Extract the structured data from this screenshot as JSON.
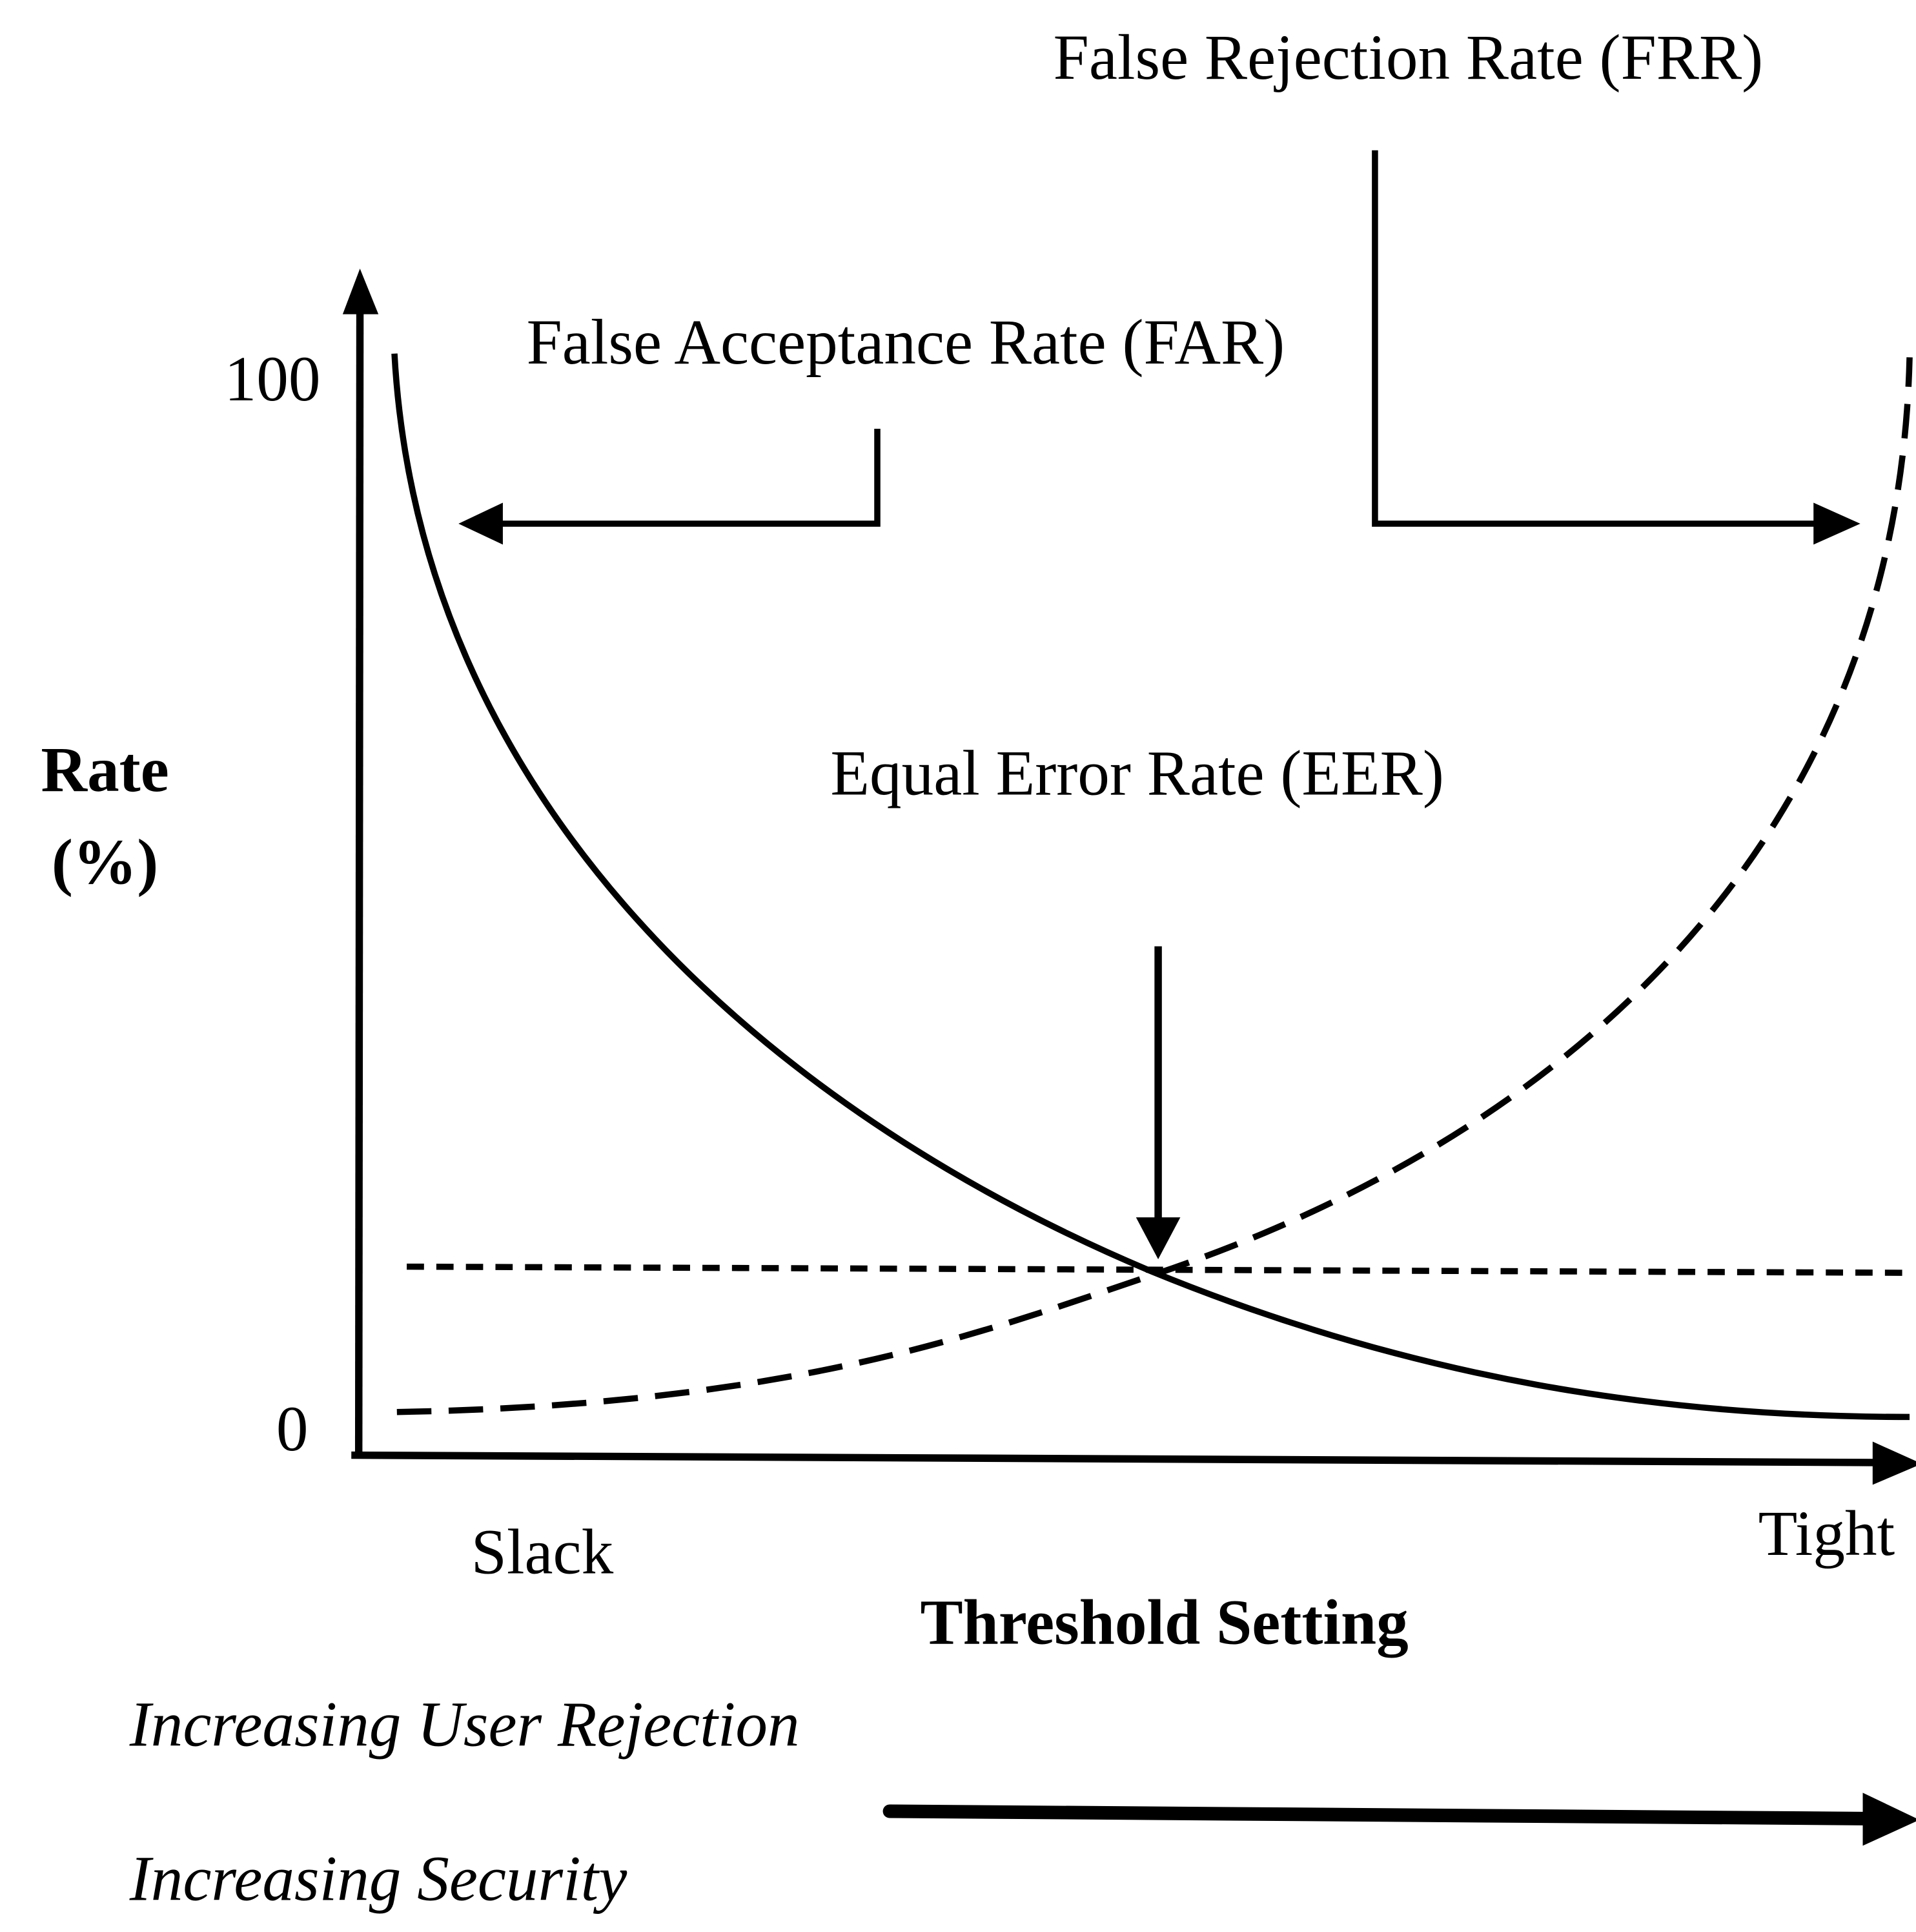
{
  "labels": {
    "frr": "False Rejection Rate (FRR)",
    "far": "False Acceptance Rate (FAR)",
    "eer": "Equal Error Rate (EER)"
  },
  "y_axis": {
    "label": [
      "Rate",
      "(%)"
    ],
    "ticks": [
      "100",
      "0"
    ]
  },
  "x_axis": {
    "ends": [
      "Slack",
      "Tight"
    ],
    "title": "Threshold Setting"
  },
  "notes": [
    "Increasing User Rejection",
    "Increasing Security"
  ]
}
